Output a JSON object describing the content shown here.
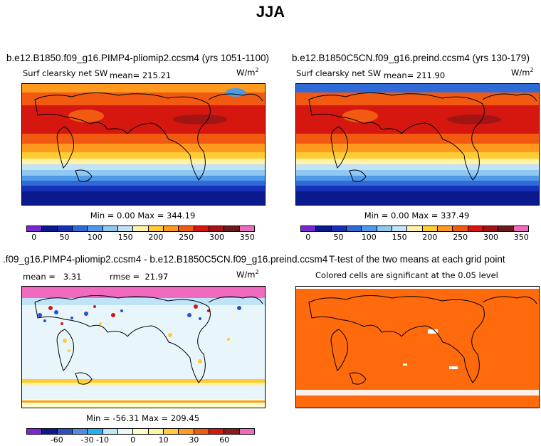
{
  "title": "JJA",
  "panels": {
    "top_left": {
      "case_title": "b.e12.B1850.f09_g16.PIMP4-pliomip2.ccsm4 (yrs 1051-1100)",
      "variable": "Surf clearsky net SW",
      "mean_label": "mean=",
      "mean_value": "215.21",
      "units": "W/m",
      "units_exp": "2",
      "min_max": "Min =    0.00 Max = 344.19",
      "colorbar_ticks": [
        "0",
        "50",
        "100",
        "150",
        "200",
        "250",
        "300",
        "350"
      ]
    },
    "top_right": {
      "case_title": "b.e12.B1850C5CN.f09_g16.preind.ccsm4 (yrs 130-179)",
      "variable": "Surf clearsky net SW",
      "mean_label": "mean=",
      "mean_value": "211.90",
      "units": "W/m",
      "units_exp": "2",
      "min_max": "Min =    0.00 Max = 337.49",
      "colorbar_ticks": [
        "0",
        "50",
        "100",
        "150",
        "200",
        "250",
        "300",
        "350"
      ]
    },
    "bottom_left": {
      "case_title": ".f09_g16.PIMP4-pliomip2.ccsm4 - b.e12.B1850C5CN.f09_g16.preind.ccsm4",
      "mean_label": "mean =",
      "mean_value": "3.31",
      "rmse_label": "rmse =",
      "rmse_value": "21.97",
      "units": "W/m",
      "units_exp": "2",
      "min_max": "Min = -56.31 Max = 209.45",
      "colorbar_ticks": [
        "-60",
        "-30",
        "-10",
        "0",
        "10",
        "30",
        "60"
      ]
    },
    "bottom_right": {
      "case_title": "T-test of the two means at each grid point",
      "subtitle": "Colored cells are significant at the 0.05 level"
    }
  },
  "colors": {
    "abs_scale": [
      "#7b26d6",
      "#0a1a8c",
      "#1730b8",
      "#2f6ad9",
      "#4f9ae8",
      "#8fc8f2",
      "#c2e2f7",
      "#fff1a6",
      "#ffcc33",
      "#ff9a1f",
      "#f25a12",
      "#d6170f",
      "#a31414",
      "#6b1a1a",
      "#f06bc0"
    ],
    "diff_scale": [
      "#7b26d6",
      "#0a1a8c",
      "#2a4fc9",
      "#4f8fe0",
      "#22b0ef",
      "#bfe3f7",
      "#e8f6fb",
      "#fffcc8",
      "#fff3a6",
      "#ffcc33",
      "#ff9a1f",
      "#f25a12",
      "#d6170f",
      "#8b1a1a",
      "#f06bc0"
    ],
    "ttest": "#ff6a0d"
  }
}
